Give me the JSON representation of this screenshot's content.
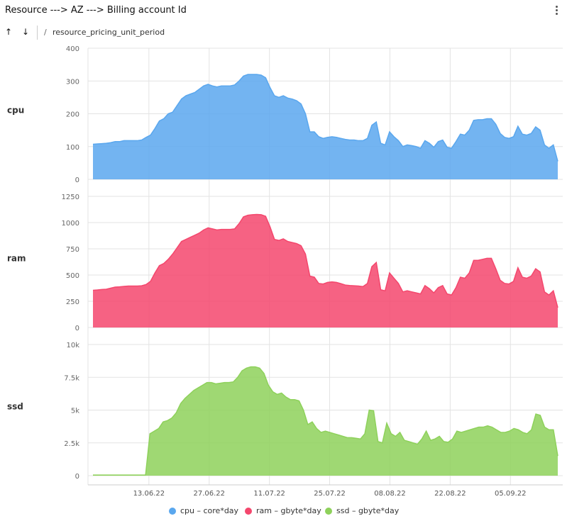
{
  "header": {
    "title": "Resource ---> AZ ---> Billing account Id",
    "sort_up": "↑",
    "sort_down": "↓",
    "path_sep": "/",
    "field_name": "resource_pricing_unit_period"
  },
  "colors": {
    "cpu": "#5aa7ee",
    "ram": "#f4476d",
    "ssd": "#8ed15b",
    "grid": "#e3e3e3"
  },
  "chart_data": {
    "type": "area",
    "x_tick_labels": [
      "13.06.22",
      "27.06.22",
      "11.07.22",
      "25.07.22",
      "08.08.22",
      "22.08.22",
      "05.09.22"
    ],
    "x_start": "2022-05-31",
    "x_end": "2022-09-16",
    "x_tick_dates": [
      "2022-06-13",
      "2022-06-27",
      "2022-07-11",
      "2022-07-25",
      "2022-08-08",
      "2022-08-22",
      "2022-09-05"
    ],
    "panels": [
      {
        "name": "cpu",
        "label": "cpu",
        "ylim": [
          0,
          400
        ],
        "y_ticks": [
          "0",
          "100",
          "200",
          "300",
          "400"
        ],
        "y_tick_values": [
          0,
          100,
          200,
          300,
          400
        ],
        "values": [
          107,
          108,
          109,
          110,
          112,
          115,
          115,
          118,
          118,
          118,
          118,
          120,
          128,
          135,
          155,
          178,
          185,
          200,
          205,
          225,
          245,
          255,
          260,
          265,
          275,
          285,
          290,
          285,
          282,
          285,
          285,
          285,
          288,
          300,
          315,
          320,
          320,
          320,
          318,
          310,
          280,
          255,
          250,
          255,
          248,
          245,
          240,
          230,
          200,
          145,
          145,
          130,
          125,
          128,
          130,
          128,
          125,
          122,
          120,
          120,
          118,
          118,
          125,
          165,
          175,
          110,
          105,
          145,
          130,
          118,
          100,
          105,
          103,
          100,
          95,
          118,
          110,
          98,
          115,
          120,
          98,
          95,
          115,
          138,
          135,
          150,
          180,
          182,
          182,
          185,
          185,
          168,
          140,
          128,
          125,
          130,
          162,
          138,
          135,
          140,
          160,
          150,
          105,
          95,
          105,
          55
        ]
      },
      {
        "name": "ram",
        "label": "ram",
        "ylim": [
          0,
          1250
        ],
        "y_ticks": [
          "0",
          "250",
          "500",
          "750",
          "1000",
          "1250"
        ],
        "y_tick_values": [
          0,
          250,
          500,
          750,
          1000,
          1250
        ],
        "values": [
          355,
          358,
          362,
          365,
          375,
          385,
          388,
          392,
          395,
          395,
          395,
          398,
          410,
          440,
          520,
          590,
          610,
          650,
          700,
          760,
          820,
          840,
          860,
          880,
          900,
          930,
          950,
          940,
          930,
          935,
          935,
          935,
          940,
          990,
          1055,
          1070,
          1075,
          1078,
          1075,
          1060,
          960,
          840,
          830,
          845,
          820,
          810,
          800,
          780,
          700,
          490,
          480,
          420,
          415,
          430,
          435,
          430,
          418,
          405,
          400,
          398,
          395,
          390,
          420,
          580,
          620,
          360,
          350,
          520,
          470,
          420,
          340,
          350,
          340,
          330,
          320,
          400,
          370,
          330,
          380,
          400,
          320,
          310,
          380,
          480,
          470,
          520,
          640,
          640,
          650,
          660,
          660,
          560,
          450,
          420,
          415,
          440,
          570,
          480,
          470,
          490,
          560,
          530,
          340,
          310,
          350,
          190
        ]
      },
      {
        "name": "ssd",
        "label": "ssd",
        "ylim": [
          0,
          10000
        ],
        "y_ticks": [
          "0",
          "2.5k",
          "5k",
          "7.5k",
          "10k"
        ],
        "y_tick_values": [
          0,
          2500,
          5000,
          7500,
          10000
        ],
        "values": [
          50,
          50,
          50,
          50,
          50,
          50,
          50,
          50,
          50,
          50,
          50,
          50,
          50,
          3200,
          3400,
          3600,
          4100,
          4200,
          4400,
          4800,
          5500,
          5900,
          6200,
          6500,
          6700,
          6900,
          7100,
          7100,
          7000,
          7050,
          7100,
          7100,
          7150,
          7500,
          8000,
          8200,
          8300,
          8300,
          8200,
          7800,
          6900,
          6400,
          6200,
          6300,
          6000,
          5800,
          5800,
          5700,
          5000,
          3900,
          4100,
          3600,
          3300,
          3400,
          3300,
          3200,
          3100,
          3000,
          2900,
          2900,
          2850,
          2800,
          3200,
          5000,
          4950,
          2600,
          2500,
          4000,
          3200,
          3000,
          3300,
          2700,
          2600,
          2500,
          2400,
          2800,
          3400,
          2700,
          2800,
          3000,
          2600,
          2550,
          2800,
          3400,
          3300,
          3400,
          3500,
          3600,
          3700,
          3700,
          3800,
          3700,
          3500,
          3300,
          3300,
          3400,
          3600,
          3500,
          3300,
          3200,
          3500,
          4700,
          4600,
          3700,
          3500,
          3500,
          1500
        ]
      }
    ],
    "legend": [
      {
        "name": "cpu",
        "label": "cpu – core*day"
      },
      {
        "name": "ram",
        "label": "ram – gbyte*day"
      },
      {
        "name": "ssd",
        "label": "ssd – gbyte*day"
      }
    ],
    "legend_position": "bottom-center",
    "grid": true
  }
}
